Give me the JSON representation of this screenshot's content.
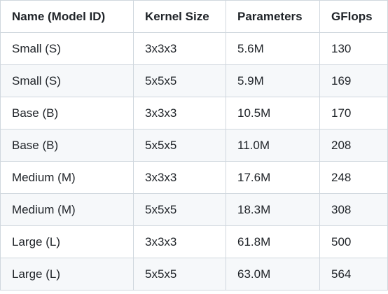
{
  "table": {
    "headers": [
      "Name (Model ID)",
      "Kernel Size",
      "Parameters",
      "GFlops"
    ],
    "rows": [
      [
        "Small (S)",
        "3x3x3",
        "5.6M",
        "130"
      ],
      [
        "Small (S)",
        "5x5x5",
        "5.9M",
        "169"
      ],
      [
        "Base (B)",
        "3x3x3",
        "10.5M",
        "170"
      ],
      [
        "Base (B)",
        "5x5x5",
        "11.0M",
        "208"
      ],
      [
        "Medium (M)",
        "3x3x3",
        "17.6M",
        "248"
      ],
      [
        "Medium (M)",
        "5x5x5",
        "18.3M",
        "308"
      ],
      [
        "Large (L)",
        "3x3x3",
        "61.8M",
        "500"
      ],
      [
        "Large (L)",
        "5x5x5",
        "63.0M",
        "564"
      ]
    ]
  }
}
